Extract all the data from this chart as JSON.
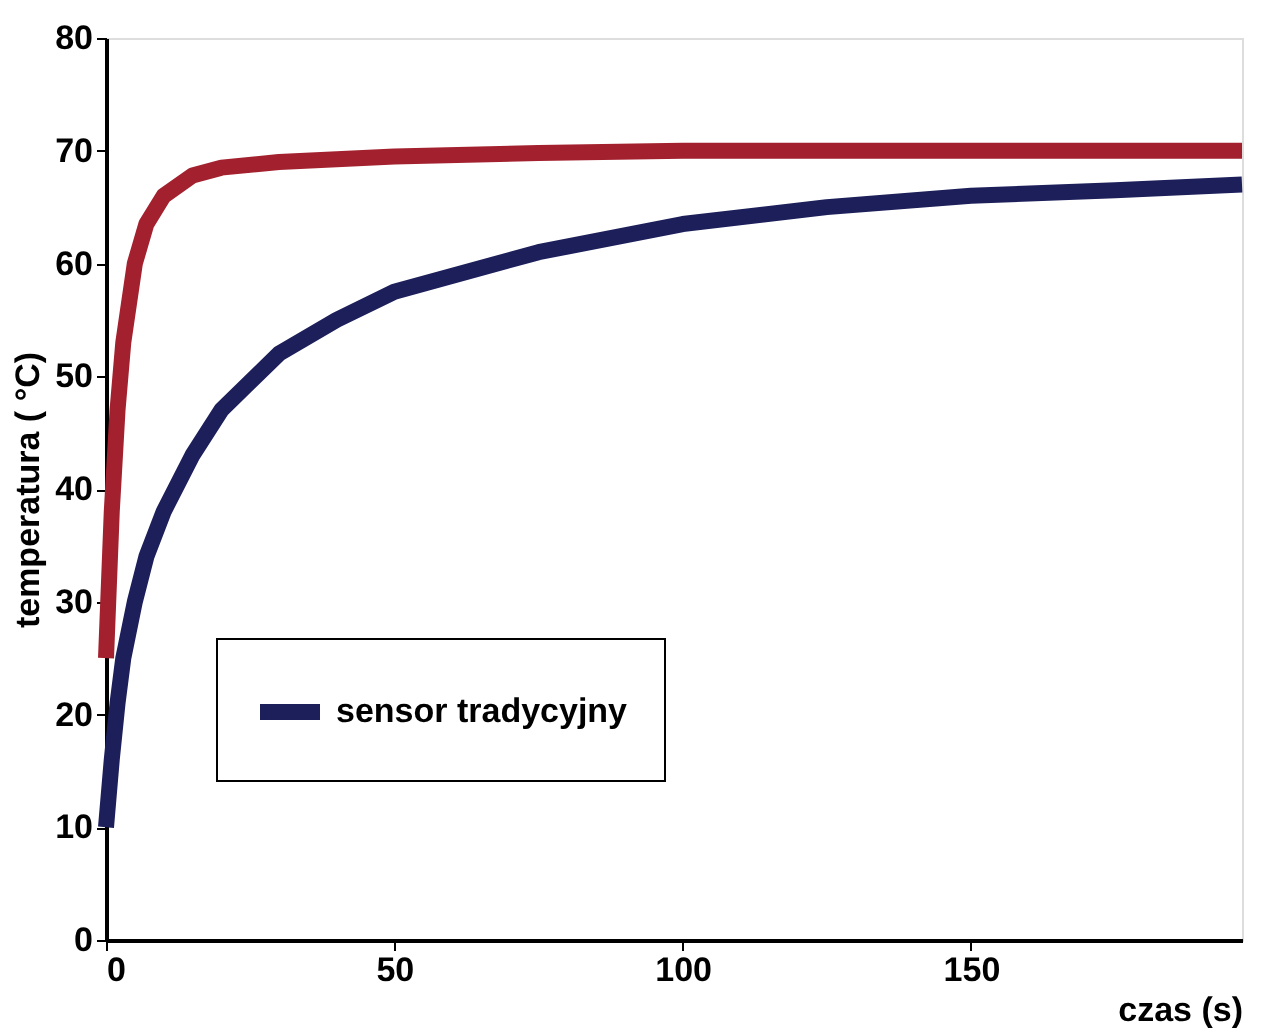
{
  "chart_data": {
    "type": "line",
    "xlabel": "czas (s)",
    "ylabel": "temperatura ( °C)",
    "xlim": [
      0,
      197
    ],
    "xticks": [
      0,
      50,
      100,
      150
    ],
    "ylim": [
      0,
      80
    ],
    "yticks": [
      0,
      10,
      20,
      30,
      40,
      50,
      60,
      70,
      80
    ],
    "grid": false,
    "legend": "bottom",
    "line_style": "solid",
    "marker": "none",
    "series": [
      {
        "color": "#a3212e",
        "x": [
          0,
          1,
          2,
          3,
          5,
          7,
          10,
          15,
          20,
          30,
          50,
          75,
          100,
          150,
          197
        ],
        "values": [
          25,
          38,
          47,
          53,
          60,
          63.5,
          66,
          67.8,
          68.5,
          69,
          69.5,
          69.8,
          70,
          70,
          70
        ]
      },
      {
        "name": "sensor tradycyjny",
        "color": "#1c1f5a",
        "x": [
          0,
          1,
          2,
          3,
          5,
          7,
          10,
          15,
          20,
          30,
          40,
          50,
          75,
          100,
          125,
          150,
          175,
          197
        ],
        "values": [
          10,
          16,
          21,
          25,
          30,
          34,
          38,
          43,
          47,
          52,
          55,
          57.5,
          61,
          63.5,
          65,
          66,
          66.5,
          67
        ]
      }
    ]
  }
}
